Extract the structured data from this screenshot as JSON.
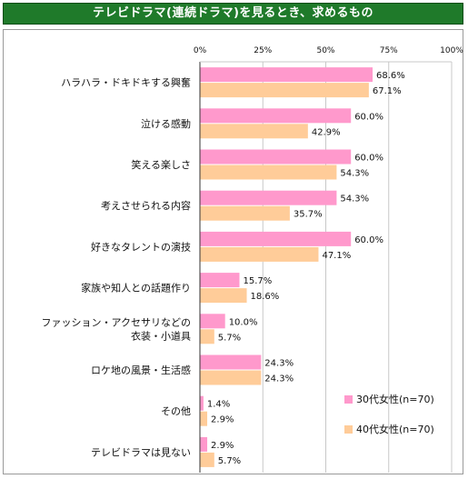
{
  "header": {
    "title": "テレビドラマ(連続ドラマ)を見るとき、求めるもの"
  },
  "colors": {
    "series_30s": "#ff99cc",
    "series_40s": "#ffcc99",
    "title_bg": "#1f7a2a",
    "axis": "#333333"
  },
  "chart_data": {
    "type": "bar",
    "orientation": "horizontal",
    "title": "テレビドラマ(連続ドラマ)を見るとき、求めるもの",
    "categories": [
      [
        "ハラハラ・ドキドキする興奮"
      ],
      [
        "泣ける感動"
      ],
      [
        "笑える楽しさ"
      ],
      [
        "考えさせられる内容"
      ],
      [
        "好きなタレントの演技"
      ],
      [
        "家族や知人との話題作り"
      ],
      [
        "ファッション・アクセサリなどの",
        "衣装・小道具"
      ],
      [
        "ロケ地の風景・生活感"
      ],
      [
        "その他"
      ],
      [
        "テレビドラマは見ない"
      ]
    ],
    "series": [
      {
        "name": "30代女性(n=70)",
        "values": [
          68.6,
          60.0,
          60.0,
          54.3,
          60.0,
          15.7,
          10.0,
          24.3,
          1.4,
          2.9
        ],
        "labels": [
          "68.6%",
          "60.0%",
          "60.0%",
          "54.3%",
          "60.0%",
          "15.7%",
          "10.0%",
          "24.3%",
          "1.4%",
          "2.9%"
        ]
      },
      {
        "name": "40代女性(n=70)",
        "values": [
          67.1,
          42.9,
          54.3,
          35.7,
          47.1,
          18.6,
          5.7,
          24.3,
          2.9,
          5.7
        ],
        "labels": [
          "67.1%",
          "42.9%",
          "54.3%",
          "35.7%",
          "47.1%",
          "18.6%",
          "5.7%",
          "24.3%",
          "2.9%",
          "5.7%"
        ]
      }
    ],
    "xlim": [
      0,
      100
    ],
    "ticks": [
      "0%",
      "25%",
      "50%",
      "75%",
      "100%"
    ],
    "grid": true,
    "legend_position": "bottom-right"
  }
}
